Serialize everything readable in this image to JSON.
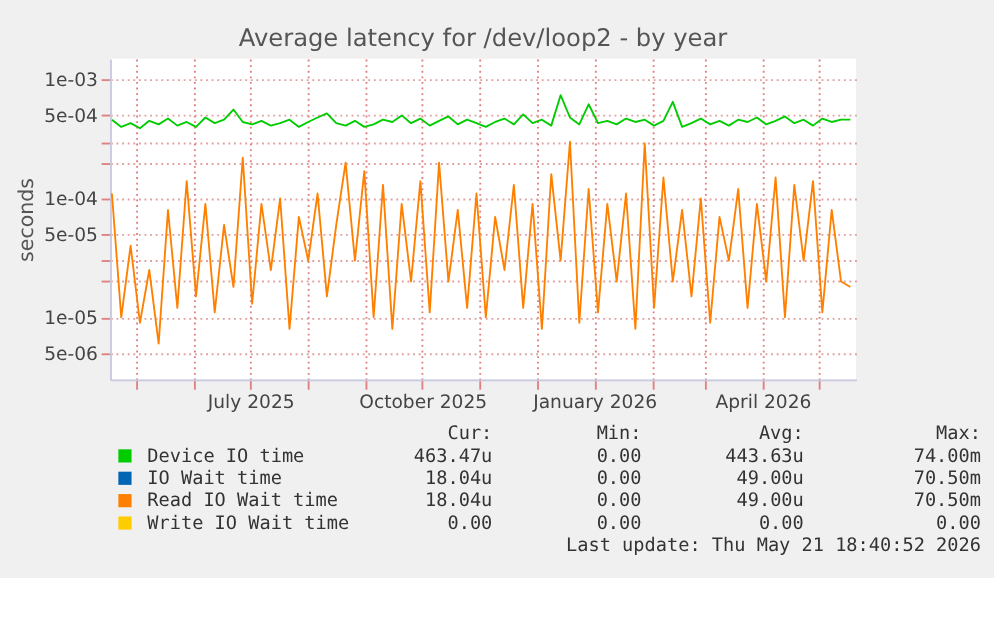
{
  "chart_data": {
    "type": "line",
    "title": "Average latency for /dev/loop2 - by year",
    "ylabel": "seconds",
    "x": [
      "2025-04-18",
      "2025-04-23",
      "2025-04-28",
      "2025-05-03",
      "2025-05-08",
      "2025-05-13",
      "2025-05-18",
      "2025-05-23",
      "2025-05-28",
      "2025-06-02",
      "2025-06-07",
      "2025-06-12",
      "2025-06-17",
      "2025-06-22",
      "2025-06-27",
      "2025-07-02",
      "2025-07-07",
      "2025-07-12",
      "2025-07-17",
      "2025-07-22",
      "2025-07-27",
      "2025-08-01",
      "2025-08-06",
      "2025-08-11",
      "2025-08-16",
      "2025-08-21",
      "2025-08-26",
      "2025-08-31",
      "2025-09-05",
      "2025-09-10",
      "2025-09-15",
      "2025-09-20",
      "2025-09-25",
      "2025-09-30",
      "2025-10-05",
      "2025-10-10",
      "2025-10-15",
      "2025-10-20",
      "2025-10-25",
      "2025-10-30",
      "2025-11-04",
      "2025-11-09",
      "2025-11-14",
      "2025-11-19",
      "2025-11-24",
      "2025-11-29",
      "2025-12-04",
      "2025-12-09",
      "2025-12-14",
      "2025-12-19",
      "2025-12-24",
      "2025-12-29",
      "2026-01-03",
      "2026-01-08",
      "2026-01-13",
      "2026-01-18",
      "2026-01-23",
      "2026-01-28",
      "2026-02-02",
      "2026-02-07",
      "2026-02-12",
      "2026-02-17",
      "2026-02-22",
      "2026-02-27",
      "2026-03-04",
      "2026-03-09",
      "2026-03-14",
      "2026-03-19",
      "2026-03-24",
      "2026-03-29",
      "2026-04-03",
      "2026-04-08",
      "2026-04-13",
      "2026-04-18",
      "2026-04-23",
      "2026-04-28",
      "2026-05-03",
      "2026-05-08",
      "2026-05-13",
      "2026-05-18"
    ],
    "series": [
      {
        "name": "Device IO time",
        "color": "#00cc00",
        "values": [
          0.00046,
          0.0004,
          0.00043,
          0.00039,
          0.00045,
          0.00042,
          0.00047,
          0.00041,
          0.00044,
          0.0004,
          0.00048,
          0.00043,
          0.00046,
          0.00056,
          0.00044,
          0.00042,
          0.00045,
          0.00041,
          0.00043,
          0.00046,
          0.0004,
          0.00044,
          0.00048,
          0.00052,
          0.00043,
          0.00041,
          0.00045,
          0.0004,
          0.00042,
          0.00046,
          0.00044,
          0.0005,
          0.00043,
          0.00047,
          0.00041,
          0.00045,
          0.00049,
          0.00042,
          0.00046,
          0.00043,
          0.0004,
          0.00044,
          0.00047,
          0.00042,
          0.00051,
          0.00043,
          0.00046,
          0.00041,
          0.00074,
          0.00048,
          0.00042,
          0.00062,
          0.00043,
          0.00045,
          0.00042,
          0.00047,
          0.00044,
          0.00046,
          0.00041,
          0.00045,
          0.00065,
          0.0004,
          0.00043,
          0.00047,
          0.00042,
          0.00045,
          0.00041,
          0.00046,
          0.00044,
          0.00048,
          0.00042,
          0.00045,
          0.00049,
          0.00043,
          0.00046,
          0.00041,
          0.00047,
          0.00044,
          0.00046,
          0.00046
        ]
      },
      {
        "name": "IO Wait time",
        "color": "#0066b3",
        "values": [
          null,
          null,
          null,
          null,
          null,
          null,
          null,
          null,
          null,
          null,
          null,
          null,
          null,
          null,
          null,
          null,
          null,
          null,
          null,
          null,
          null,
          null,
          null,
          null,
          null,
          null,
          null,
          null,
          null,
          null,
          null,
          null,
          null,
          null,
          null,
          null,
          null,
          null,
          null,
          null,
          null,
          null,
          null,
          null,
          null,
          null,
          null,
          null,
          null,
          null,
          null,
          null,
          null,
          null,
          null,
          null,
          null,
          null,
          null,
          null,
          null,
          null,
          null,
          null,
          null,
          null,
          null,
          null,
          null,
          null,
          null,
          null,
          null,
          null,
          null,
          null,
          null,
          null,
          null,
          null
        ]
      },
      {
        "name": "Read IO Wait time",
        "color": "#ff8000",
        "values": [
          0.00011,
          1e-05,
          4e-05,
          9e-06,
          2.5e-05,
          6e-06,
          8e-05,
          1.2e-05,
          0.00014,
          1.5e-05,
          9e-05,
          1.1e-05,
          6e-05,
          1.8e-05,
          0.00022,
          1.3e-05,
          9e-05,
          2.5e-05,
          0.0001,
          8e-06,
          7e-05,
          3e-05,
          0.00011,
          1.5e-05,
          6e-05,
          0.0002,
          3e-05,
          0.00017,
          1e-05,
          0.00013,
          8e-06,
          9e-05,
          2e-05,
          0.00014,
          1.1e-05,
          0.0002,
          2e-05,
          8e-05,
          1.2e-05,
          0.00011,
          1e-05,
          7e-05,
          2.5e-05,
          0.00013,
          1.2e-05,
          9e-05,
          8e-06,
          0.00016,
          3e-05,
          0.0003,
          9e-06,
          0.00012,
          1.1e-05,
          9e-05,
          2e-05,
          0.00011,
          8e-06,
          0.00029,
          1.2e-05,
          0.00015,
          2e-05,
          8e-05,
          1.5e-05,
          0.0001,
          9e-06,
          7e-05,
          3e-05,
          0.00012,
          1.2e-05,
          9e-05,
          2e-05,
          0.00015,
          1e-05,
          0.00013,
          3e-05,
          0.00014,
          1.1e-05,
          8e-05,
          2e-05,
          1.8e-05
        ]
      },
      {
        "name": "Write IO Wait time",
        "color": "#ffcc00",
        "values": [
          null,
          null,
          null,
          null,
          null,
          null,
          null,
          null,
          null,
          null,
          null,
          null,
          null,
          null,
          null,
          null,
          null,
          null,
          null,
          null,
          null,
          null,
          null,
          null,
          null,
          null,
          null,
          null,
          null,
          null,
          null,
          null,
          null,
          null,
          null,
          null,
          null,
          null,
          null,
          null,
          null,
          null,
          null,
          null,
          null,
          null,
          null,
          null,
          null,
          null,
          null,
          null,
          null,
          null,
          null,
          null,
          null,
          null,
          null,
          null,
          null,
          null,
          null,
          null,
          null,
          null,
          null,
          null,
          null,
          null,
          null,
          null,
          null,
          null,
          null,
          null,
          null,
          null,
          null,
          null
        ]
      }
    ],
    "xlim": [
      "2025-04-17",
      "2026-05-21"
    ],
    "xticks": [
      {
        "value": "2025-05-01",
        "label": null
      },
      {
        "value": "2025-06-01",
        "label": null
      },
      {
        "value": "2025-07-01",
        "label": "July 2025"
      },
      {
        "value": "2025-08-01",
        "label": null
      },
      {
        "value": "2025-09-01",
        "label": null
      },
      {
        "value": "2025-10-01",
        "label": "October 2025"
      },
      {
        "value": "2025-11-01",
        "label": null
      },
      {
        "value": "2025-12-01",
        "label": null
      },
      {
        "value": "2026-01-01",
        "label": "January 2026"
      },
      {
        "value": "2026-02-01",
        "label": null
      },
      {
        "value": "2026-03-01",
        "label": null
      },
      {
        "value": "2026-04-01",
        "label": "April 2026"
      },
      {
        "value": "2026-05-01",
        "label": null
      }
    ],
    "log": true,
    "ylim": [
      3e-06,
      0.0015
    ],
    "yticks": [
      {
        "value": 5e-06,
        "label": "5e-06"
      },
      {
        "value": 1e-05,
        "label": "1e-05"
      },
      {
        "value": 2e-05,
        "label": null
      },
      {
        "value": 3e-05,
        "label": null
      },
      {
        "value": 5e-05,
        "label": "5e-05"
      },
      {
        "value": 0.0001,
        "label": "1e-04"
      },
      {
        "value": 0.0002,
        "label": null
      },
      {
        "value": 0.0003,
        "label": null
      },
      {
        "value": 0.0005,
        "label": "5e-04"
      },
      {
        "value": 0.001,
        "label": "1e-03"
      }
    ],
    "grid": true,
    "legend": "bottom",
    "marker": "none",
    "line_style": "solid",
    "annotations": [
      "Cur:",
      "Min:",
      "Avg:",
      "Max:",
      "463.47u",
      "0.00",
      "443.63u",
      "74.00m",
      "18.04u",
      "0.00",
      "49.00u",
      "70.50m",
      "18.04u",
      "0.00",
      "49.00u",
      "70.50m",
      "0.00",
      "0.00",
      "0.00",
      "0.00",
      "Last update: Thu May 21 18:40:52 2026"
    ]
  }
}
